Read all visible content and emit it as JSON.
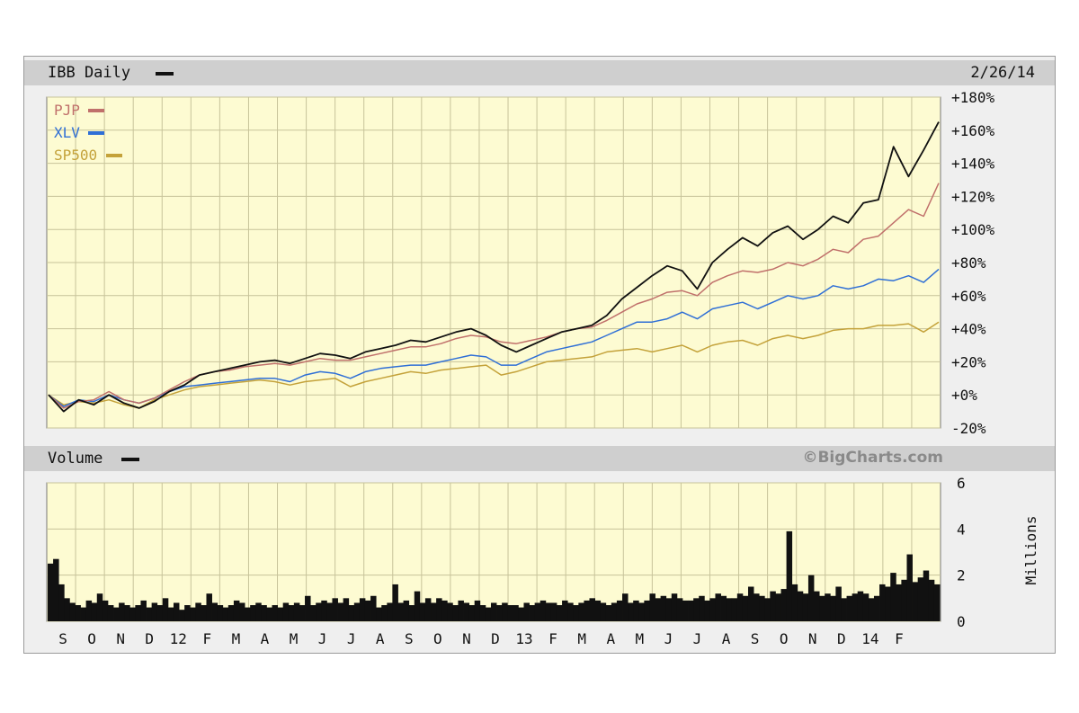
{
  "header": {
    "symbol_label": "IBB Daily",
    "date": "2/26/14"
  },
  "volume_header": {
    "label": "Volume",
    "credit": "©BigCharts.com"
  },
  "legend": [
    {
      "name": "PJP",
      "color": "#c0706b"
    },
    {
      "name": "XLV",
      "color": "#2f6fd6"
    },
    {
      "name": "SP500",
      "color": "#c4a23a"
    }
  ],
  "colors": {
    "ibb": "#111111",
    "plot_bg": "#fdfbd2",
    "grid": "#c7c39a"
  },
  "chart_data": [
    {
      "type": "line",
      "x_ticks": [
        "S",
        "O",
        "N",
        "D",
        "12",
        "F",
        "M",
        "A",
        "M",
        "J",
        "J",
        "A",
        "S",
        "O",
        "N",
        "D",
        "13",
        "F",
        "M",
        "A",
        "M",
        "J",
        "J",
        "A",
        "S",
        "O",
        "N",
        "D",
        "14",
        "F"
      ],
      "y_ticks": [
        "+180%",
        "+160%",
        "+140%",
        "+120%",
        "+100%",
        "+80%",
        "+60%",
        "+40%",
        "+20%",
        "+0%",
        "-20%"
      ],
      "ylim": [
        -20,
        180
      ],
      "series": [
        {
          "name": "IBB Daily",
          "values": [
            0,
            -10,
            -3,
            -6,
            0,
            -5,
            -8,
            -4,
            2,
            6,
            12,
            14,
            16,
            18,
            20,
            21,
            19,
            22,
            25,
            24,
            22,
            26,
            28,
            30,
            33,
            32,
            35,
            38,
            40,
            36,
            30,
            26,
            30,
            34,
            38,
            40,
            42,
            48,
            58,
            65,
            72,
            78,
            75,
            64,
            80,
            88,
            95,
            90,
            98,
            102,
            94,
            100,
            108,
            104,
            116,
            118,
            150,
            132,
            148,
            165
          ]
        },
        {
          "name": "PJP",
          "values": [
            0,
            -8,
            -4,
            -3,
            2,
            -3,
            -5,
            -2,
            3,
            8,
            12,
            14,
            15,
            17,
            18,
            19,
            18,
            20,
            22,
            21,
            21,
            23,
            25,
            27,
            29,
            29,
            31,
            34,
            36,
            35,
            32,
            31,
            33,
            35,
            38,
            40,
            41,
            45,
            50,
            55,
            58,
            62,
            63,
            60,
            68,
            72,
            75,
            74,
            76,
            80,
            78,
            82,
            88,
            86,
            94,
            96,
            104,
            112,
            108,
            128
          ]
        },
        {
          "name": "XLV",
          "values": [
            0,
            -7,
            -3,
            -4,
            0,
            -3,
            -5,
            -2,
            2,
            5,
            6,
            7,
            8,
            9,
            10,
            10,
            8,
            12,
            14,
            13,
            10,
            14,
            16,
            17,
            18,
            18,
            20,
            22,
            24,
            23,
            18,
            18,
            22,
            26,
            28,
            30,
            32,
            36,
            40,
            44,
            44,
            46,
            50,
            46,
            52,
            54,
            56,
            52,
            56,
            60,
            58,
            60,
            66,
            64,
            66,
            70,
            69,
            72,
            68,
            76
          ]
        },
        {
          "name": "SP500",
          "values": [
            0,
            -6,
            -4,
            -5,
            -3,
            -6,
            -8,
            -3,
            0,
            3,
            5,
            6,
            7,
            8,
            9,
            8,
            6,
            8,
            9,
            10,
            5,
            8,
            10,
            12,
            14,
            13,
            15,
            16,
            17,
            18,
            12,
            14,
            17,
            20,
            21,
            22,
            23,
            26,
            27,
            28,
            26,
            28,
            30,
            26,
            30,
            32,
            33,
            30,
            34,
            36,
            34,
            36,
            39,
            40,
            40,
            42,
            42,
            43,
            38,
            44
          ]
        }
      ]
    },
    {
      "type": "bar",
      "title": "Volume",
      "ylabel": "Millions",
      "y_ticks": [
        "6",
        "4",
        "2",
        "0"
      ],
      "ylim": [
        0,
        6
      ],
      "values": [
        2.5,
        2.7,
        1.6,
        1.0,
        0.8,
        0.7,
        0.6,
        0.9,
        0.8,
        1.2,
        0.9,
        0.7,
        0.6,
        0.8,
        0.7,
        0.6,
        0.7,
        0.9,
        0.6,
        0.8,
        0.7,
        1.0,
        0.6,
        0.8,
        0.5,
        0.7,
        0.6,
        0.8,
        0.7,
        1.2,
        0.8,
        0.7,
        0.6,
        0.7,
        0.9,
        0.8,
        0.6,
        0.7,
        0.8,
        0.7,
        0.6,
        0.7,
        0.6,
        0.8,
        0.7,
        0.8,
        0.7,
        1.1,
        0.7,
        0.8,
        0.9,
        0.8,
        1.0,
        0.8,
        1.0,
        0.7,
        0.8,
        1.0,
        0.9,
        1.1,
        0.6,
        0.7,
        0.8,
        1.6,
        0.8,
        0.9,
        0.7,
        1.3,
        0.8,
        1.0,
        0.8,
        1.0,
        0.9,
        0.8,
        0.7,
        0.9,
        0.8,
        0.7,
        0.9,
        0.7,
        0.6,
        0.8,
        0.7,
        0.8,
        0.7,
        0.7,
        0.6,
        0.8,
        0.7,
        0.8,
        0.9,
        0.8,
        0.8,
        0.7,
        0.9,
        0.8,
        0.7,
        0.8,
        0.9,
        1.0,
        0.9,
        0.8,
        0.7,
        0.8,
        0.9,
        1.2,
        0.8,
        0.9,
        0.8,
        0.9,
        1.2,
        1.0,
        1.1,
        1.0,
        1.2,
        1.0,
        0.9,
        0.9,
        1.0,
        1.1,
        0.9,
        1.0,
        1.2,
        1.1,
        1.0,
        1.0,
        1.2,
        1.1,
        1.5,
        1.2,
        1.1,
        1.0,
        1.3,
        1.2,
        1.4,
        3.9,
        1.6,
        1.3,
        1.2,
        2.0,
        1.3,
        1.1,
        1.2,
        1.1,
        1.5,
        1.0,
        1.1,
        1.2,
        1.3,
        1.2,
        1.0,
        1.1,
        1.6,
        1.5,
        2.1,
        1.6,
        1.8,
        2.9,
        1.7,
        1.9,
        2.2,
        1.8,
        1.6
      ]
    }
  ],
  "volume_x_ticks": [
    "S",
    "O",
    "N",
    "D",
    "12",
    "F",
    "M",
    "A",
    "M",
    "J",
    "J",
    "A",
    "S",
    "O",
    "N",
    "D",
    "13",
    "F",
    "M",
    "A",
    "M",
    "J",
    "J",
    "A",
    "S",
    "O",
    "N",
    "D",
    "14",
    "F"
  ]
}
